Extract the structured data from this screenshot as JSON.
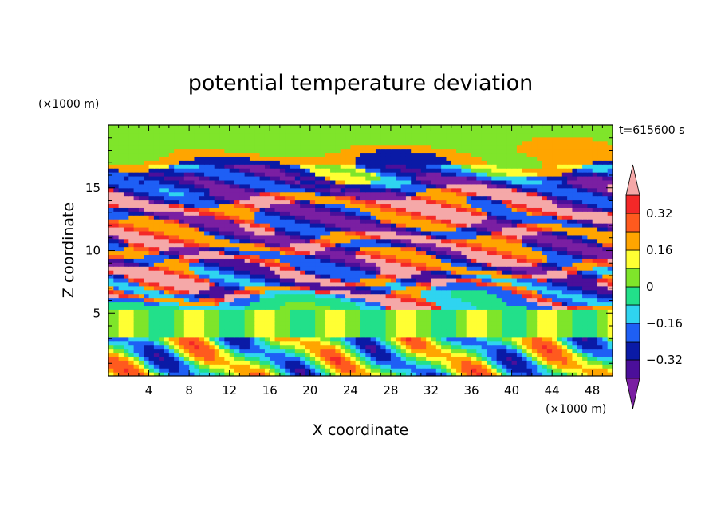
{
  "chart_data": {
    "type": "heatmap",
    "title": "potential temperature deviation",
    "xlabel": "X coordinate",
    "ylabel": "Z coordinate",
    "x_unit": "(×1000 m)",
    "y_unit": "(×1000 m)",
    "time_label": "t=615600 s",
    "xlim": [
      0,
      50
    ],
    "ylim": [
      0,
      20
    ],
    "x_ticks": [
      4,
      8,
      12,
      16,
      20,
      24,
      28,
      32,
      36,
      40,
      44,
      48
    ],
    "x_tick_labels": [
      "4",
      "8",
      "12",
      "16",
      "20",
      "24",
      "28",
      "32",
      "36",
      "40",
      "44",
      "48"
    ],
    "y_ticks": [
      5,
      10,
      15
    ],
    "y_tick_labels": [
      "5",
      "10",
      "15"
    ],
    "colorbar": {
      "levels": [
        -0.4,
        -0.32,
        -0.24,
        -0.16,
        -0.08,
        0,
        0.08,
        0.16,
        0.24,
        0.32,
        0.4
      ],
      "labeled_ticks": [
        0.32,
        0.16,
        0,
        -0.16,
        -0.32
      ],
      "labeled_tick_text": [
        "0.32",
        "0.16",
        "0",
        "−0.16",
        "−0.32"
      ],
      "extend": "both",
      "colors": [
        "#7a1fa2",
        "#4b0f9a",
        "#0a1aa6",
        "#1e5ff5",
        "#2fd4f0",
        "#22e08a",
        "#7fe52a",
        "#ffff33",
        "#ffa500",
        "#ff5a1e",
        "#f42828",
        "#f5a8a8"
      ]
    },
    "bands": [
      {
        "z": 18.6,
        "value": 0.05
      },
      {
        "z": 17.2,
        "value": 0.18
      },
      {
        "z": 16.4,
        "value": -0.3
      },
      {
        "z": 15.2,
        "value": -0.45
      },
      {
        "z": 13.6,
        "value": 0.45
      },
      {
        "z": 12.0,
        "value": -0.42
      },
      {
        "z": 10.8,
        "value": 0.42
      },
      {
        "z": 9.4,
        "value": -0.4
      },
      {
        "z": 8.6,
        "value": 0.45
      },
      {
        "z": 7.4,
        "value": -0.35
      },
      {
        "z": 6.5,
        "value": 0.42
      },
      {
        "z": 5.8,
        "value": -0.2
      },
      {
        "z": 5.0,
        "value": -0.02
      },
      {
        "z": 3.8,
        "value": 0.04
      },
      {
        "z": 2.4,
        "value": 0.1
      },
      {
        "z": 1.0,
        "value": 0.2
      }
    ]
  }
}
